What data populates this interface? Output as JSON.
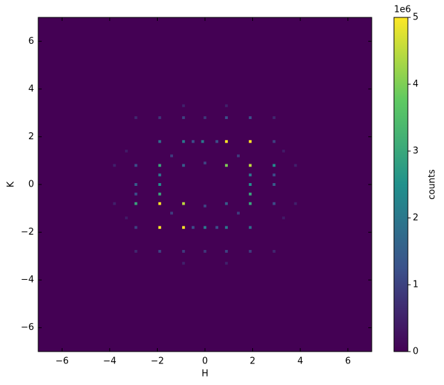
{
  "chart_data": {
    "type": "hist2d",
    "xlabel": "H",
    "ylabel": "K",
    "xlim": [
      -7,
      7
    ],
    "ylim": [
      -7,
      7
    ],
    "xticks": [
      {
        "value": -6,
        "label": "−6"
      },
      {
        "value": -4,
        "label": "−4"
      },
      {
        "value": -2,
        "label": "−2"
      },
      0,
      2,
      4,
      6
    ],
    "yticks": [
      {
        "value": -6,
        "label": "−6"
      },
      {
        "value": -4,
        "label": "−4"
      },
      {
        "value": -2,
        "label": "−2"
      },
      0,
      2,
      4,
      6
    ],
    "colorbar": {
      "label": "counts",
      "offset_label": "1e6",
      "clim": [
        0,
        5000000
      ],
      "ticks": [
        0,
        {
          "value": 1000000,
          "label": "1"
        },
        {
          "value": 2000000,
          "label": "2"
        },
        {
          "value": 3000000,
          "label": "3"
        },
        {
          "value": 4000000,
          "label": "4"
        },
        {
          "value": 5000000,
          "label": "5"
        }
      ],
      "colormap": "viridis"
    },
    "x": [
      -1.9,
      -0.9,
      -0.1,
      0.9,
      1.9,
      2.9,
      -2.9,
      -1.9,
      -0.9,
      0.9,
      1.9,
      2.9,
      -2.9,
      -1.9,
      -0.9,
      0.9,
      1.9,
      2.9,
      -2.9,
      -1.9,
      -0.9,
      0.0,
      0.9,
      1.9,
      -1.9,
      -0.9,
      0.0,
      0.9,
      1.9,
      -1.9,
      -0.9,
      0.0,
      0.9,
      1.9,
      -1.9,
      -1.9,
      -1.9,
      1.9,
      1.9,
      1.9,
      -2.9,
      -2.9,
      2.9,
      2.9,
      -3.8,
      -3.8,
      3.8,
      3.8,
      -2.9,
      2.9,
      -2.9,
      2.9,
      -0.5,
      0.5,
      -0.5,
      0.5,
      -1.4,
      1.4,
      -1.4,
      1.4,
      -0.9,
      0.9,
      -0.9,
      0.9,
      0.0,
      0.0,
      -3.3,
      3.3,
      -3.3,
      3.3
    ],
    "y": [
      1.8,
      1.8,
      1.8,
      1.8,
      1.8,
      1.8,
      0.8,
      0.8,
      0.8,
      0.8,
      0.8,
      0.8,
      -0.8,
      -0.8,
      -0.8,
      -0.8,
      -0.8,
      -0.8,
      -1.8,
      -1.8,
      -1.8,
      -1.8,
      -1.8,
      -1.8,
      2.8,
      2.8,
      2.8,
      2.8,
      2.8,
      -2.8,
      -2.8,
      -2.8,
      -2.8,
      -2.8,
      0.0,
      0.4,
      -0.4,
      0.0,
      0.4,
      -0.4,
      0.0,
      -0.4,
      0.0,
      0.4,
      0.8,
      -0.8,
      0.8,
      -0.8,
      2.8,
      2.8,
      -2.8,
      -2.8,
      1.8,
      1.8,
      -1.8,
      -1.8,
      1.2,
      1.2,
      -1.2,
      -1.2,
      3.3,
      3.3,
      -3.3,
      -3.3,
      0.9,
      -0.9,
      1.4,
      1.4,
      -1.4,
      -1.4
    ],
    "values": [
      1800000,
      2000000,
      2000000,
      5000000,
      5000000,
      1000000,
      1200000,
      3000000,
      1500000,
      4000000,
      4500000,
      2500000,
      3000000,
      5000000,
      4500000,
      1500000,
      3000000,
      1200000,
      1000000,
      5000000,
      5000000,
      2000000,
      2000000,
      1800000,
      800000,
      1000000,
      800000,
      1200000,
      1200000,
      1000000,
      900000,
      800000,
      1000000,
      900000,
      2500000,
      2000000,
      3000000,
      2500000,
      2000000,
      3000000,
      1500000,
      1200000,
      1500000,
      1200000,
      500000,
      500000,
      500000,
      500000,
      600000,
      600000,
      600000,
      600000,
      1200000,
      1200000,
      1200000,
      1200000,
      900000,
      900000,
      900000,
      900000,
      500000,
      500000,
      500000,
      500000,
      1000000,
      1000000,
      400000,
      400000,
      400000,
      400000
    ]
  }
}
